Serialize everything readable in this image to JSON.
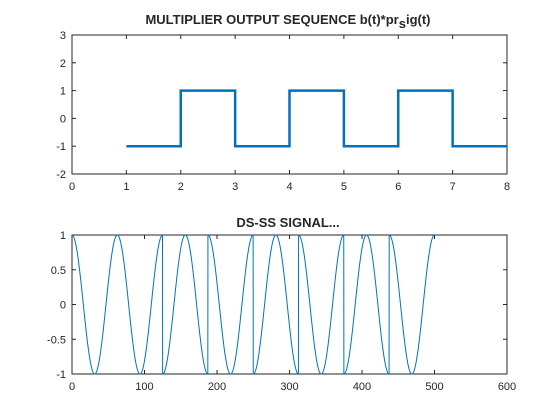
{
  "chart_data": [
    {
      "type": "line",
      "title": {
        "main": "MULTIPLIER OUTPUT SEQUENCE b(t)*pr",
        "sub": "s",
        "tail": "ig(t)"
      },
      "xlabel": "",
      "ylabel": "",
      "xlim": [
        0,
        8
      ],
      "ylim": [
        -2,
        3
      ],
      "xticks": [
        0,
        1,
        2,
        3,
        4,
        5,
        6,
        7,
        8
      ],
      "yticks": [
        -2,
        -1,
        0,
        1,
        2,
        3
      ],
      "grid": false,
      "line_color": "#0072bd",
      "step": true,
      "x": [
        1,
        2,
        2,
        3,
        3,
        4,
        4,
        5,
        5,
        6,
        6,
        7,
        7,
        8
      ],
      "y": [
        -1,
        -1,
        1,
        1,
        -1,
        -1,
        1,
        1,
        -1,
        -1,
        1,
        1,
        -1,
        -1
      ]
    },
    {
      "type": "line",
      "title": "DS-SS SIGNAL...",
      "xlabel": "",
      "ylabel": "",
      "xlim": [
        0,
        600
      ],
      "ylim": [
        -1,
        1
      ],
      "xticks": [
        0,
        100,
        200,
        300,
        400,
        500,
        600
      ],
      "yticks": [
        -1,
        -0.5,
        0,
        0.5,
        1
      ],
      "grid": false,
      "line_color": "#0072bd",
      "signal": {
        "formula": "cos(2*pi*t/62.5) * b(t)",
        "t_range": [
          0,
          500
        ],
        "period": 62.5,
        "chip_width": 62.5,
        "chips": [
          1,
          1,
          -1,
          1,
          -1,
          1,
          -1,
          1
        ]
      }
    }
  ]
}
